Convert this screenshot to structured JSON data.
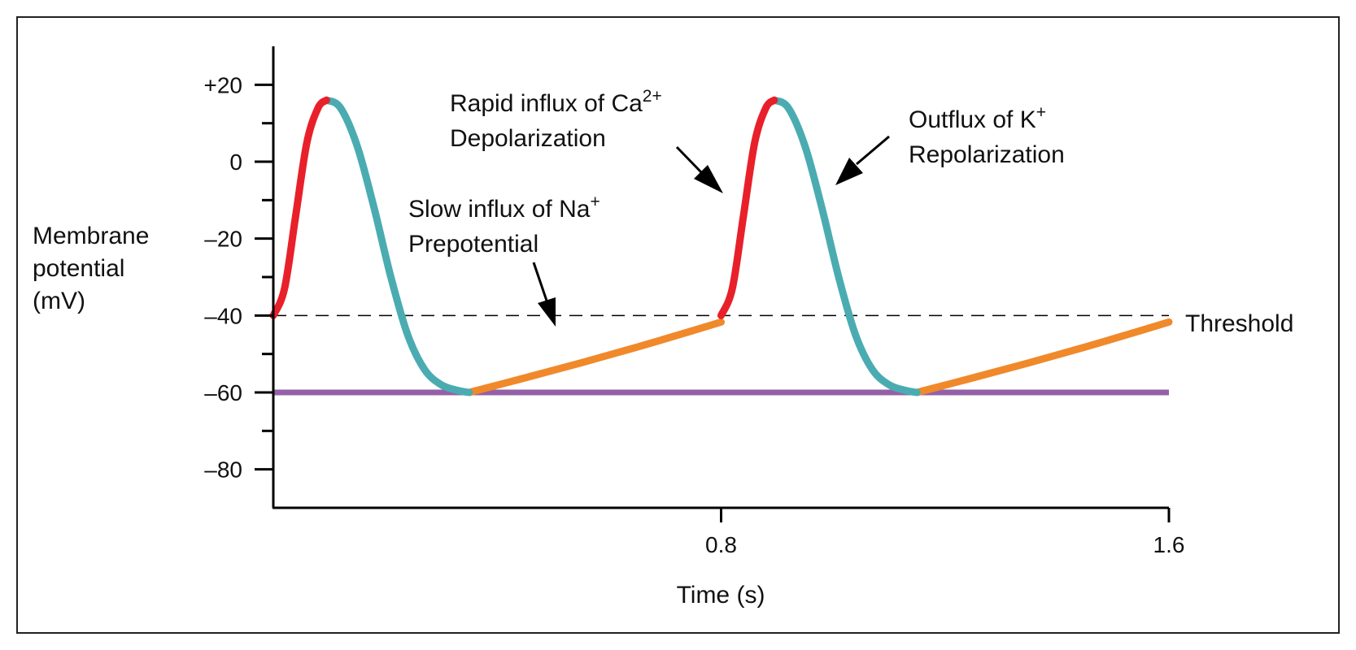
{
  "chart_data": {
    "type": "line",
    "title": "",
    "xlabel": "Time (s)",
    "ylabel": [
      "Membrane",
      "potential",
      "(mV)"
    ],
    "xlim": [
      0,
      1.6
    ],
    "ylim": [
      -90,
      30
    ],
    "x_ticks": [
      {
        "value": 0.8,
        "label": "0.8"
      },
      {
        "value": 1.6,
        "label": "1.6"
      }
    ],
    "y_ticks": [
      {
        "value": 20,
        "label": "+20"
      },
      {
        "value": 0,
        "label": "0"
      },
      {
        "value": -20,
        "label": "–20"
      },
      {
        "value": -40,
        "label": "–40"
      },
      {
        "value": -60,
        "label": "–60"
      },
      {
        "value": -80,
        "label": "–80"
      }
    ],
    "y_minor_ticks": [
      10,
      -10,
      -30,
      -50,
      -70
    ],
    "threshold": {
      "value": -40,
      "label": "Threshold",
      "color": "#000000"
    },
    "baseline": {
      "value": -60,
      "color": "#9460a8"
    },
    "series": [
      {
        "phase": "depolarization",
        "color": "#e8202a",
        "segments": [
          {
            "x": [
              0.0,
              0.02,
              0.04,
              0.06,
              0.08,
              0.095
            ],
            "y": [
              -40,
              -33,
              -14,
              5,
              14,
              16
            ]
          },
          {
            "x": [
              0.8,
              0.82,
              0.84,
              0.86,
              0.88,
              0.895
            ],
            "y": [
              -40,
              -33,
              -14,
              5,
              14,
              16
            ]
          }
        ]
      },
      {
        "phase": "repolarization",
        "color": "#4aacb1",
        "segments": [
          {
            "x": [
              0.095,
              0.12,
              0.15,
              0.18,
              0.21,
              0.24,
              0.27,
              0.3,
              0.33,
              0.35
            ],
            "y": [
              16,
              14,
              4,
              -12,
              -30,
              -45,
              -54,
              -58,
              -59.5,
              -60
            ]
          },
          {
            "x": [
              0.895,
              0.92,
              0.95,
              0.98,
              1.01,
              1.04,
              1.07,
              1.1,
              1.13,
              1.15
            ],
            "y": [
              16,
              14,
              4,
              -12,
              -30,
              -45,
              -54,
              -58,
              -59.5,
              -60
            ]
          }
        ]
      },
      {
        "phase": "prepotential",
        "color": "#f0892a",
        "segments": [
          {
            "x": [
              0.35,
              0.45,
              0.55,
              0.65,
              0.75,
              0.8
            ],
            "y": [
              -60,
              -56.2,
              -52.3,
              -48.2,
              -43.9,
              -41.7
            ]
          },
          {
            "x": [
              1.15,
              1.25,
              1.35,
              1.45,
              1.55,
              1.6
            ],
            "y": [
              -60,
              -56.2,
              -52.3,
              -48.2,
              -43.9,
              -41.7
            ]
          }
        ]
      }
    ],
    "annotations": [
      {
        "line1_pre": "Slow influx of Na",
        "line1_sup": "+",
        "line2": "Prepotential"
      },
      {
        "line1_pre": "Rapid influx of Ca",
        "line1_sup": "2+",
        "line2": "Depolarization"
      },
      {
        "line1_pre": "Outflux of K",
        "line1_sup": "+",
        "line2": "Repolarization"
      }
    ]
  }
}
